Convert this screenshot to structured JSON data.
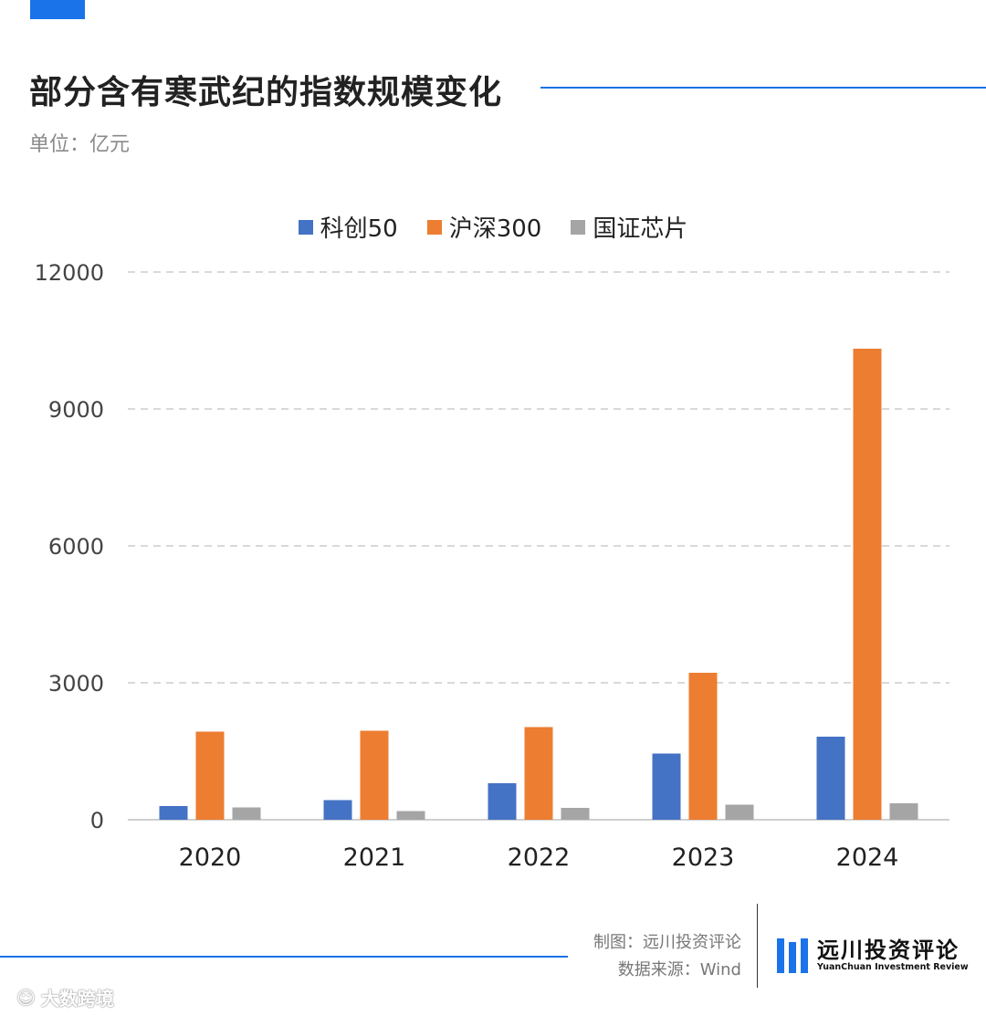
{
  "header": {
    "title": "部分含有寒武纪的指数规模变化",
    "unit": "单位：亿元"
  },
  "chart_data": {
    "type": "bar",
    "categories": [
      "2020",
      "2021",
      "2022",
      "2023",
      "2024"
    ],
    "series": [
      {
        "name": "科创50",
        "color": "#4472c4",
        "values": [
          300,
          430,
          800,
          1450,
          1820
        ]
      },
      {
        "name": "沪深300",
        "color": "#ed7d31",
        "values": [
          1930,
          1950,
          2030,
          3220,
          10320
        ]
      },
      {
        "name": "国证芯片",
        "color": "#a5a5a5",
        "values": [
          270,
          190,
          260,
          330,
          360
        ]
      }
    ],
    "y_ticks": [
      "0",
      "3000",
      "6000",
      "9000",
      "12000"
    ],
    "ylim": [
      0,
      12000
    ],
    "grid": true,
    "legend_position": "top-center"
  },
  "footer": {
    "credit_line1": "制图：远川投资评论",
    "credit_line2": "数据来源：Wind",
    "logo_cn": "远川投资评论",
    "logo_en": "YuanChuan Investment Review",
    "watermark": "大数跨境"
  }
}
